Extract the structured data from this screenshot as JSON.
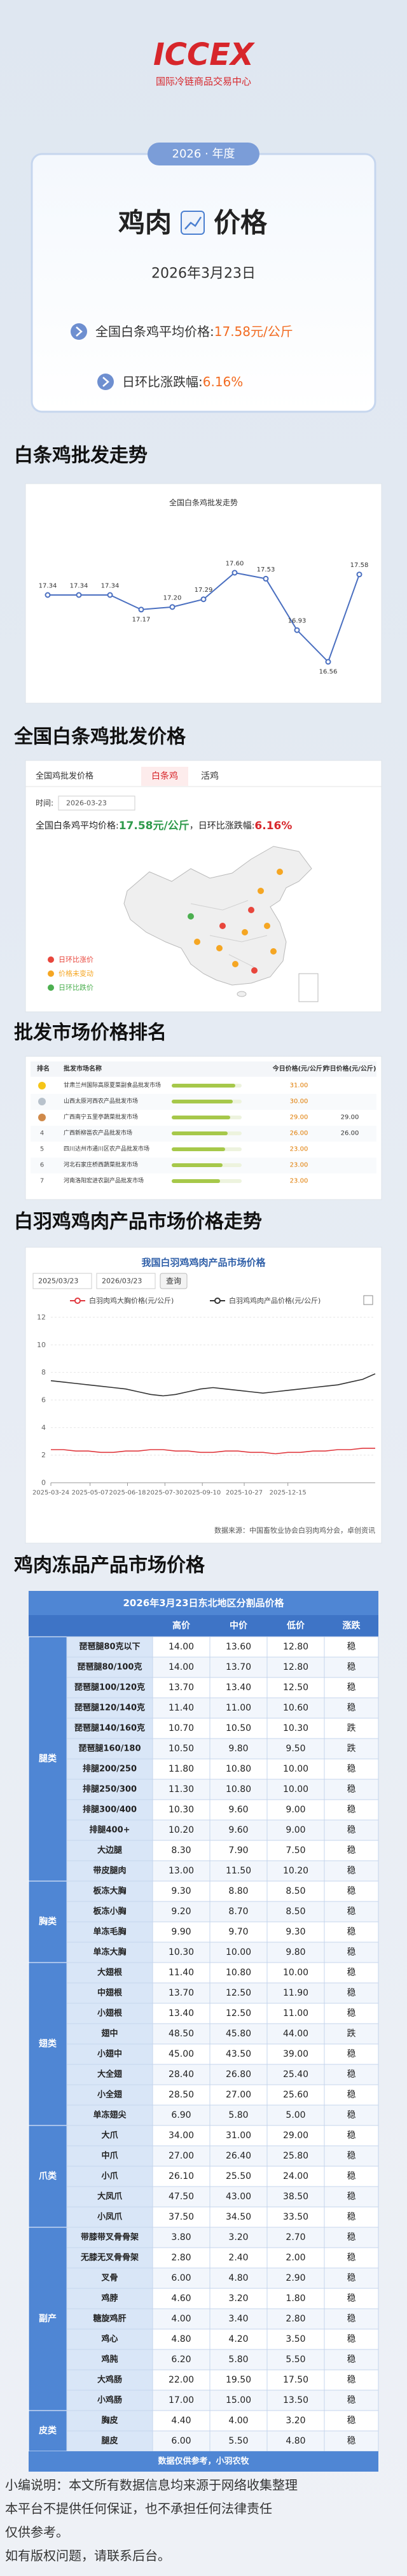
{
  "header": {
    "logo": "ICCEX",
    "org": "国际冷链商品交易中心"
  },
  "card": {
    "year": "2026 · 年度",
    "title_left": "鸡肉",
    "title_right": "价格",
    "date": "2026年3月23日",
    "avg_label": "全国白条鸡平均价格:",
    "avg_value": "17.58元/公斤",
    "change_label": "日环比涨跌幅:",
    "change_value": "6.16%"
  },
  "headings": [
    "白条鸡批发走势",
    "全国白条鸡批发价格",
    "批发市场价格排名",
    "白羽鸡鸡肉产品市场价格走势",
    "鸡肉冻品产品市场价格"
  ],
  "chart_data": [
    {
      "type": "line",
      "title": "全国白条鸡批发走势",
      "color": "#4a6fc0",
      "values": [
        17.34,
        17.34,
        17.34,
        17.17,
        17.2,
        17.29,
        17.6,
        17.53,
        16.93,
        16.56,
        17.58
      ],
      "value_labels": [
        "17.34",
        "17.34",
        "17.34",
        "17.17",
        "17.20",
        "17.29",
        "17.60",
        "17.53",
        "16.93",
        "16.56",
        "17.58"
      ]
    },
    {
      "type": "line",
      "title": "我国白羽鸡鸡肉产品市场价格",
      "date_from": "2025/03/23",
      "date_to": "2026/03/23",
      "button": "查询",
      "x": [
        "2025-03-24",
        "2025-04-07",
        "2025-04-21",
        "2025-05-05",
        "2025-05-19",
        "2025-06-02",
        "2025-06-16",
        "2025-06-30",
        "2025-07-14",
        "2025-07-28",
        "2025-08-11",
        "2025-08-25",
        "2025-09-08",
        "2025-09-22",
        "2025-10-06",
        "2025-10-20",
        "2025-11-03",
        "2025-11-17",
        "2025-12-01",
        "2025-12-15",
        "2025-12-29",
        "2026-01-12",
        "2026-01-26",
        "2026-02-09",
        "2026-02-23",
        "2026-03-09",
        "2026-03-23"
      ],
      "xlim": [
        "2025-03-24",
        "2026-03-23"
      ],
      "xticks": [
        "2025-03-24",
        "2025-05-07",
        "2025-06-18",
        "2025-07-30",
        "2025-09-10",
        "2025-10-27",
        "2025-12-15"
      ],
      "ylim": [
        0,
        12
      ],
      "yticks": [
        0,
        2,
        4,
        6,
        8,
        10,
        12
      ],
      "grid": true,
      "series": [
        {
          "name": "白羽肉鸡大胸价格(元/公斤)",
          "color": "#e0383e",
          "values": [
            2.4,
            2.4,
            2.3,
            2.3,
            2.2,
            2.2,
            2.3,
            2.3,
            2.4,
            2.4,
            2.3,
            2.3,
            2.2,
            2.2,
            2.3,
            2.3,
            2.2,
            2.2,
            2.1,
            2.2,
            2.2,
            2.3,
            2.3,
            2.4,
            2.4,
            2.5,
            2.5
          ]
        },
        {
          "name": "白羽鸡鸡肉产品价格(元/公斤)",
          "color": "#333333",
          "values": [
            7.4,
            7.3,
            7.2,
            7.1,
            7.0,
            6.9,
            6.8,
            6.6,
            6.4,
            6.3,
            6.4,
            6.6,
            6.8,
            6.9,
            6.8,
            6.7,
            6.6,
            6.5,
            6.6,
            6.7,
            6.8,
            6.9,
            7.0,
            7.1,
            7.3,
            7.5,
            7.9
          ]
        }
      ],
      "source": "数据来源：中国畜牧业协会白羽肉鸡分会，卓创资讯"
    }
  ],
  "map_panel": {
    "title": "全国鸡批发价格",
    "tabs": [
      "白条鸡",
      "活鸡"
    ],
    "time_label": "时间:",
    "date": "2026-03-23",
    "avg_label": "全国白条鸡平均价格:",
    "avg_value": "17.58元/公斤",
    "change_label": "，日环比涨跌幅:",
    "change_value": "6.16%",
    "legend": [
      "日环比涨价",
      "价格未变动",
      "日环比跌价"
    ]
  },
  "ranking": {
    "columns": [
      "排名",
      "批发市场名称",
      "今日价格(元/公斤)",
      "昨日价格(元/公斤)"
    ],
    "rows": [
      {
        "rank": null,
        "name": "甘肃兰州国际高原夏菜副食品批发市场",
        "today": "31.00",
        "yesterday": null
      },
      {
        "rank": null,
        "name": "山西太原河西农产品批发市场",
        "today": "30.00",
        "yesterday": null
      },
      {
        "rank": null,
        "name": "广西南宁五里亭蔬菜批发市场",
        "today": "29.00",
        "yesterday": "29.00"
      },
      {
        "rank": "4",
        "name": "广西新柳邕农产品批发市场",
        "today": "26.00",
        "yesterday": "26.00"
      },
      {
        "rank": "5",
        "name": "四川达州市通川区农产品批发市场",
        "today": "23.00",
        "yesterday": null
      },
      {
        "rank": "6",
        "name": "河北石家庄桥西蔬菜批发市场",
        "today": "23.00",
        "yesterday": null
      },
      {
        "rank": "7",
        "name": "河南洛阳宏进农副产品批发市场",
        "today": "23.00",
        "yesterday": null
      }
    ]
  },
  "frozen": {
    "title": "2026年3月23日东北地区分割品价格",
    "columns": [
      "高价",
      "中价",
      "低价",
      "涨跌"
    ],
    "groups": [
      {
        "name": "腿类",
        "rows": [
          [
            "琵琶腿80克以下",
            "14.00",
            "13.60",
            "12.80",
            "稳"
          ],
          [
            "琵琶腿80/100克",
            "14.00",
            "13.70",
            "12.80",
            "稳"
          ],
          [
            "琵琶腿100/120克",
            "13.70",
            "13.40",
            "12.50",
            "稳"
          ],
          [
            "琵琶腿120/140克",
            "11.40",
            "11.00",
            "10.60",
            "稳"
          ],
          [
            "琵琶腿140/160克",
            "10.70",
            "10.50",
            "10.30",
            "跌"
          ],
          [
            "琵琶腿160/180",
            "10.50",
            "9.80",
            "9.50",
            "跌"
          ],
          [
            "排腿200/250",
            "11.80",
            "10.80",
            "10.00",
            "稳"
          ],
          [
            "排腿250/300",
            "11.30",
            "10.80",
            "10.00",
            "稳"
          ],
          [
            "排腿300/400",
            "10.30",
            "9.60",
            "9.00",
            "稳"
          ],
          [
            "排腿400+",
            "10.20",
            "9.60",
            "9.00",
            "稳"
          ],
          [
            "大边腿",
            "8.30",
            "7.90",
            "7.50",
            "稳"
          ],
          [
            "带皮腿肉",
            "13.00",
            "11.50",
            "10.20",
            "稳"
          ]
        ]
      },
      {
        "name": "胸类",
        "rows": [
          [
            "板冻大胸",
            "9.30",
            "8.80",
            "8.50",
            "稳"
          ],
          [
            "板冻小胸",
            "9.20",
            "8.70",
            "8.50",
            "稳"
          ],
          [
            "单冻毛胸",
            "9.90",
            "9.70",
            "9.30",
            "稳"
          ],
          [
            "单冻大胸",
            "10.30",
            "10.00",
            "9.80",
            "稳"
          ]
        ]
      },
      {
        "name": "翅类",
        "rows": [
          [
            "大翅根",
            "11.40",
            "10.80",
            "10.00",
            "稳"
          ],
          [
            "中翅根",
            "13.70",
            "12.50",
            "11.90",
            "稳"
          ],
          [
            "小翅根",
            "13.40",
            "12.50",
            "11.00",
            "稳"
          ],
          [
            "翅中",
            "48.50",
            "45.80",
            "44.00",
            "跌"
          ],
          [
            "小翅中",
            "45.00",
            "43.50",
            "39.00",
            "稳"
          ],
          [
            "大全翅",
            "28.40",
            "26.80",
            "25.40",
            "稳"
          ],
          [
            "小全翅",
            "28.50",
            "27.00",
            "25.60",
            "稳"
          ],
          [
            "单冻翅尖",
            "6.90",
            "5.80",
            "5.00",
            "稳"
          ]
        ]
      },
      {
        "name": "爪类",
        "rows": [
          [
            "大爪",
            "34.00",
            "31.00",
            "29.00",
            "稳"
          ],
          [
            "中爪",
            "27.00",
            "26.40",
            "25.80",
            "稳"
          ],
          [
            "小爪",
            "26.10",
            "25.50",
            "24.00",
            "稳"
          ],
          [
            "大凤爪",
            "47.50",
            "43.00",
            "38.50",
            "稳"
          ],
          [
            "小凤爪",
            "37.50",
            "34.50",
            "33.50",
            "稳"
          ]
        ]
      },
      {
        "name": "副产",
        "rows": [
          [
            "带膝带叉骨骨架",
            "3.80",
            "3.20",
            "2.70",
            "稳"
          ],
          [
            "无膝无叉骨骨架",
            "2.80",
            "2.40",
            "2.00",
            "稳"
          ],
          [
            "叉骨",
            "6.00",
            "4.80",
            "2.90",
            "稳"
          ],
          [
            "鸡脖",
            "4.60",
            "3.20",
            "1.80",
            "稳"
          ],
          [
            "糖旋鸡肝",
            "4.00",
            "3.40",
            "2.80",
            "稳"
          ],
          [
            "鸡心",
            "4.80",
            "4.20",
            "3.50",
            "稳"
          ],
          [
            "鸡肫",
            "6.20",
            "5.80",
            "5.50",
            "稳"
          ],
          [
            "大鸡肠",
            "22.00",
            "19.50",
            "17.50",
            "稳"
          ],
          [
            "小鸡肠",
            "17.00",
            "15.00",
            "13.50",
            "稳"
          ]
        ]
      },
      {
        "name": "皮类",
        "rows": [
          [
            "胸皮",
            "4.40",
            "4.00",
            "3.20",
            "稳"
          ],
          [
            "腿皮",
            "6.00",
            "5.50",
            "4.80",
            "稳"
          ]
        ]
      }
    ],
    "footer": "数据仅供参考，小羽农牧"
  },
  "note": [
    "小编说明：本文所有数据信息均来源于网络收集整理",
    "本平台不提供任何保证，也不承担任何法律责任",
    "仅供参考。",
    "如有版权问题，请联系后台。"
  ]
}
